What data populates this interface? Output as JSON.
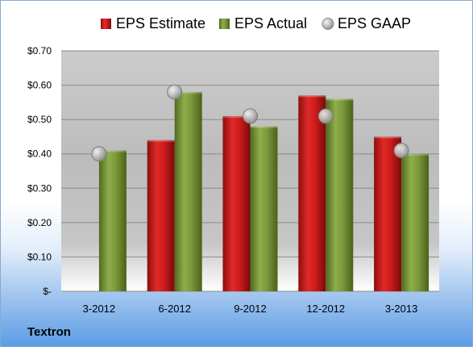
{
  "company": "Textron",
  "chart_data": {
    "type": "bar",
    "title": "",
    "xlabel": "",
    "ylabel": "",
    "categories": [
      "3-2012",
      "6-2012",
      "9-2012",
      "12-2012",
      "3-2013"
    ],
    "series": [
      {
        "name": "EPS Estimate",
        "kind": "bar",
        "color": "#cc1f1f",
        "values": [
          null,
          0.44,
          0.51,
          0.57,
          0.45
        ]
      },
      {
        "name": "EPS Actual",
        "kind": "bar",
        "color": "#7d9a3c",
        "values": [
          0.41,
          0.58,
          0.48,
          0.56,
          0.4
        ]
      },
      {
        "name": "EPS GAAP",
        "kind": "marker",
        "color": "#b9b9b9",
        "values": [
          0.4,
          0.58,
          0.51,
          0.51,
          0.41
        ]
      }
    ],
    "ylim": [
      0,
      0.7
    ],
    "yticks": [
      0,
      0.1,
      0.2,
      0.3,
      0.4,
      0.5,
      0.6,
      0.7
    ],
    "ytick_labels": [
      "$-",
      "$0.10",
      "$0.20",
      "$0.30",
      "$0.40",
      "$0.50",
      "$0.60",
      "$0.70"
    ],
    "grid": true,
    "legend": "top"
  }
}
